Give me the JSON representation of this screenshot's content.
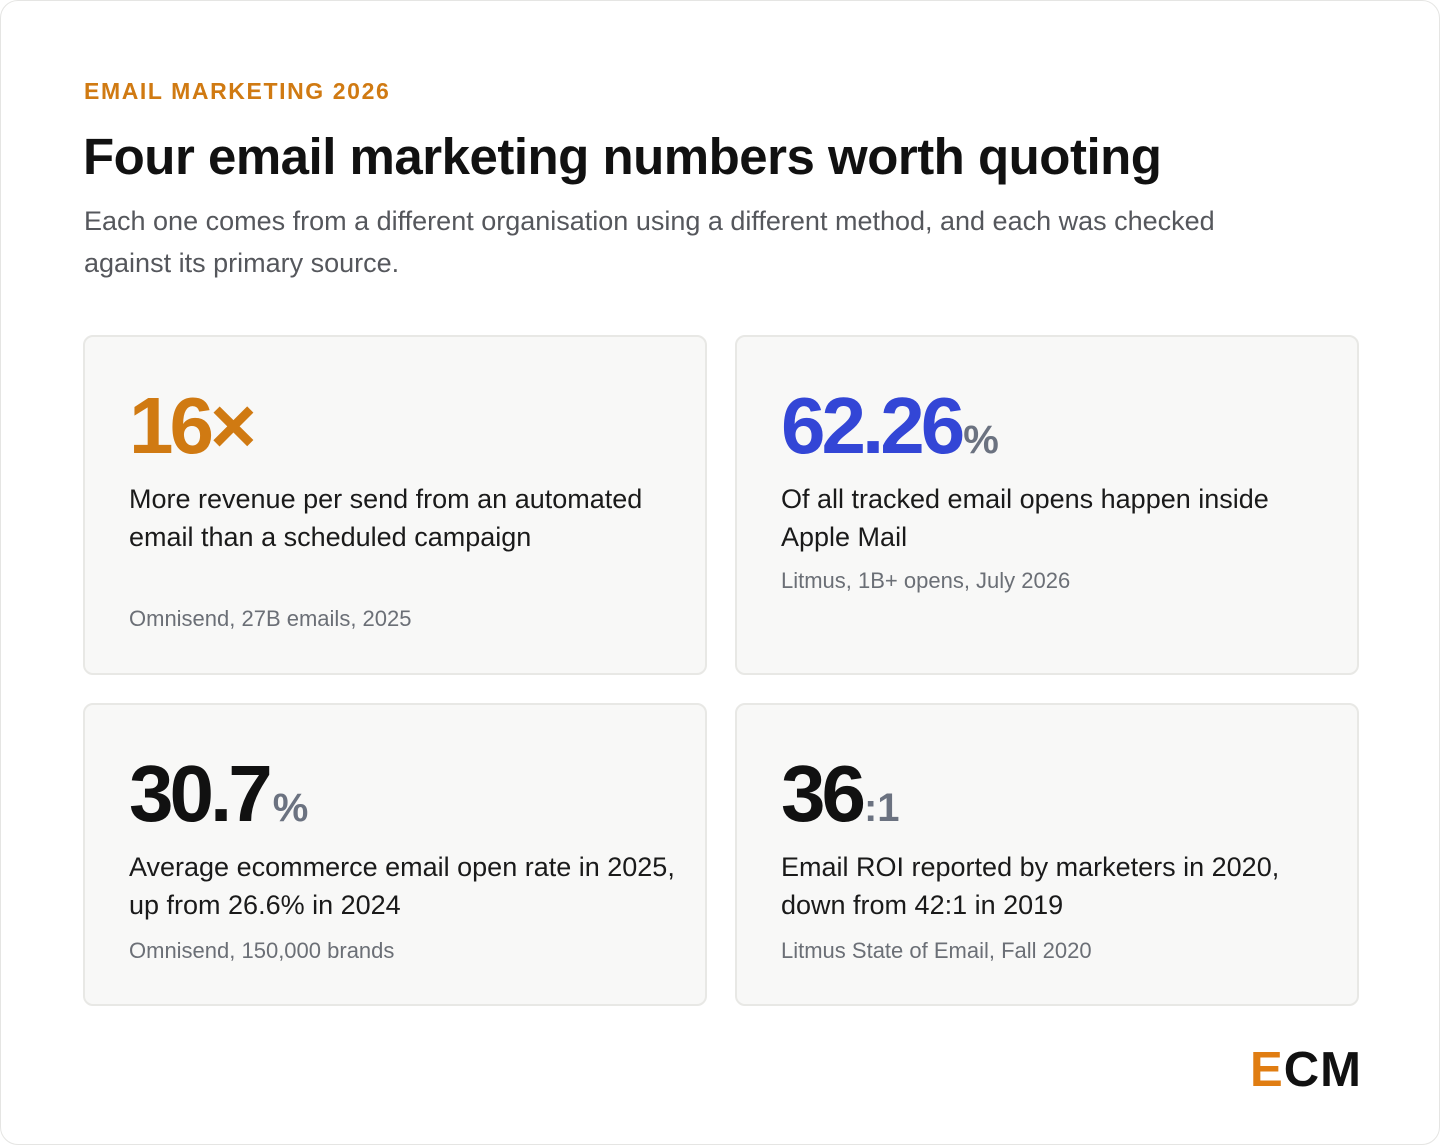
{
  "header": {
    "eyebrow": "EMAIL MARKETING 2026",
    "title": "Four email marketing numbers worth quoting",
    "subtitle": "Each one comes from a different organisation using a different method, and each was checked against its primary source."
  },
  "colors": {
    "accent_orange": "#d07a12",
    "accent_blue": "#3346d6",
    "unit_gray": "#6b7280",
    "card_background": "#f8f8f7",
    "card_border": "#e8e8e5"
  },
  "stats": [
    {
      "value": "16×",
      "unit": "",
      "value_color": "orange",
      "description": "More revenue per send from an automated email than a scheduled campaign",
      "source": "Omnisend, 27B emails, 2025"
    },
    {
      "value": "62.26",
      "unit": "%",
      "value_color": "blue",
      "description": "Of all tracked email opens happen inside Apple Mail",
      "source": "Litmus, 1B+ opens, July 2026"
    },
    {
      "value": "30.7",
      "unit": "%",
      "value_color": "black",
      "description": "Average ecommerce email open rate in 2025, up from 26.6% in 2024",
      "source": "Omnisend, 150,000 brands"
    },
    {
      "value": "36",
      "unit": ":1",
      "value_color": "black",
      "description": "Email ROI reported by marketers in 2020, down from 42:1 in 2019",
      "source": "Litmus State of Email, Fall 2020"
    }
  ],
  "logo": {
    "first_letter": "E",
    "rest": "CM"
  }
}
